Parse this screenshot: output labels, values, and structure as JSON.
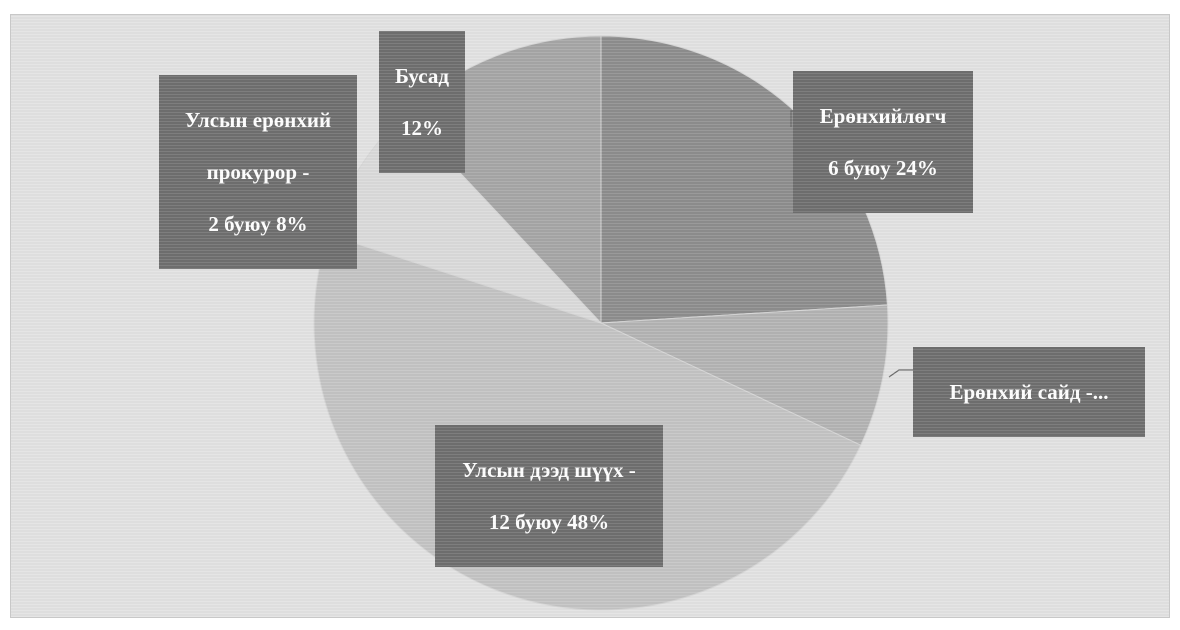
{
  "chart_data": {
    "type": "pie",
    "title": "",
    "legend": "none",
    "slices": [
      {
        "key": "president",
        "label": "Ерөнхийлөгч",
        "count": 6,
        "value": 24,
        "color": "#8e8e8e",
        "text": [
          "Ерөнхийлөгч",
          "6 буюу 24%"
        ]
      },
      {
        "key": "pm",
        "label": "Ерөнхий сайд",
        "count": 2,
        "value": 8,
        "color": "#b4b4b4",
        "text": [
          "Ерөнхий сайд -..."
        ]
      },
      {
        "key": "supreme_court",
        "label": "Улсын дээд шүүх",
        "count": 12,
        "value": 48,
        "color": "#c4c4c4",
        "text": [
          "Улсын дээд шүүх -",
          "12 буюу 48%"
        ]
      },
      {
        "key": "prosecutor",
        "label": "Улсын ерөнхий прокурор",
        "count": 2,
        "value": 8,
        "color": "#dadada",
        "text": [
          "Улсын ерөнхий",
          "прокурор -",
          "2 буюу 8%"
        ]
      },
      {
        "key": "other",
        "label": "Бусад",
        "value": 12,
        "color": "#a6a6a6",
        "text": [
          "Бусад",
          "12%"
        ]
      }
    ]
  }
}
